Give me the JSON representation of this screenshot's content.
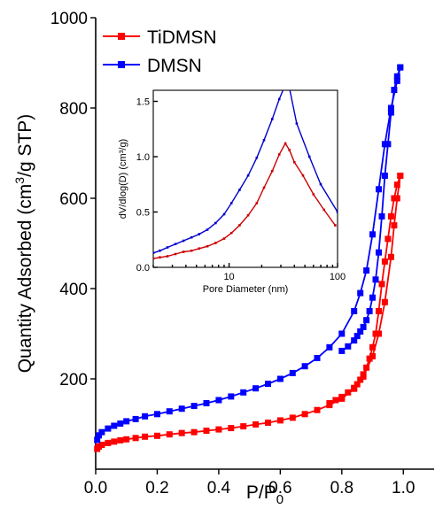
{
  "chart_data": [
    {
      "id": "main",
      "type": "line",
      "title": "",
      "xlabel_base": "P/P",
      "xlabel_sub": "0",
      "ylabel_pre": "Quantity Adsorbed (cm",
      "ylabel_sup": "3",
      "ylabel_post": "/g STP)",
      "xlim": [
        0.0,
        1.1
      ],
      "ylim": [
        0,
        1000
      ],
      "xticks": [
        0.0,
        0.2,
        0.4,
        0.6,
        0.8,
        1.0
      ],
      "xtick_labels": [
        "0.0",
        "0.2",
        "0.4",
        "0.6",
        "0.8",
        "1.0"
      ],
      "yticks": [
        200,
        400,
        600,
        800,
        1000
      ],
      "ytick_labels": [
        "200",
        "400",
        "600",
        "800",
        "1000"
      ],
      "legend": {
        "position": "top-left"
      },
      "series": [
        {
          "name": "TiDMSN",
          "color": "#ff0000",
          "marker": "square",
          "adsorption": {
            "x": [
              0.005,
              0.01,
              0.02,
              0.04,
              0.06,
              0.08,
              0.1,
              0.13,
              0.16,
              0.2,
              0.24,
              0.28,
              0.32,
              0.36,
              0.4,
              0.44,
              0.48,
              0.52,
              0.56,
              0.6,
              0.64,
              0.68,
              0.72,
              0.76,
              0.8,
              0.84,
              0.87,
              0.9,
              0.92,
              0.94,
              0.96,
              0.97,
              0.98,
              0.99
            ],
            "y": [
              45,
              50,
              54,
              58,
              61,
              64,
              66,
              69,
              72,
              74,
              77,
              80,
              82,
              85,
              88,
              91,
              95,
              99,
              103,
              108,
              114,
              122,
              131,
              142,
              156,
              178,
              205,
              250,
              300,
              370,
              470,
              540,
              600,
              650
            ]
          },
          "desorption": {
            "x": [
              0.99,
              0.98,
              0.97,
              0.96,
              0.95,
              0.94,
              0.93,
              0.92,
              0.91,
              0.9,
              0.89,
              0.88,
              0.87,
              0.86,
              0.85,
              0.84,
              0.82,
              0.8,
              0.78,
              0.76
            ],
            "y": [
              650,
              630,
              600,
              560,
              510,
              460,
              410,
              350,
              300,
              270,
              245,
              225,
              210,
              198,
              188,
              180,
              170,
              160,
              153,
              146
            ]
          }
        },
        {
          "name": "DMSN",
          "color": "#0000ff",
          "marker": "square",
          "adsorption": {
            "x": [
              0.005,
              0.01,
              0.02,
              0.04,
              0.06,
              0.08,
              0.1,
              0.13,
              0.16,
              0.2,
              0.24,
              0.28,
              0.32,
              0.36,
              0.4,
              0.44,
              0.48,
              0.52,
              0.56,
              0.6,
              0.64,
              0.68,
              0.72,
              0.76,
              0.8,
              0.84,
              0.86,
              0.88,
              0.9,
              0.92,
              0.94,
              0.96,
              0.98,
              0.99
            ],
            "y": [
              65,
              75,
              82,
              90,
              96,
              101,
              106,
              111,
              117,
              122,
              128,
              134,
              140,
              146,
              153,
              161,
              170,
              179,
              189,
              200,
              213,
              228,
              246,
              270,
              300,
              350,
              390,
              440,
              520,
              620,
              720,
              800,
              860,
              890
            ]
          },
          "desorption": {
            "x": [
              0.99,
              0.98,
              0.97,
              0.96,
              0.95,
              0.94,
              0.93,
              0.92,
              0.91,
              0.9,
              0.89,
              0.88,
              0.87,
              0.86,
              0.85,
              0.84,
              0.82,
              0.8
            ],
            "y": [
              890,
              870,
              840,
              790,
              720,
              650,
              560,
              480,
              420,
              380,
              350,
              330,
              315,
              305,
              295,
              285,
              272,
              262
            ]
          }
        }
      ]
    },
    {
      "id": "inset",
      "type": "line",
      "title": "",
      "xlabel": "Pore Diameter (nm)",
      "ylabel": "dV/dlog(D) (cm³/g)",
      "xscale": "log",
      "xlim": [
        2,
        100
      ],
      "ylim": [
        0.0,
        1.6
      ],
      "xticks": [
        10,
        100
      ],
      "xtick_labels": [
        "10",
        "100"
      ],
      "yticks": [
        0.0,
        0.5,
        1.0,
        1.5
      ],
      "ytick_labels": [
        "0.0",
        "0.5",
        "1.0",
        "1.5"
      ],
      "series": [
        {
          "name": "TiDMSN",
          "color": "#cc0000",
          "x": [
            2.0,
            2.3,
            2.7,
            3.2,
            3.8,
            4.5,
            5.3,
            6.3,
            7.5,
            9.0,
            10.5,
            12.5,
            15,
            18,
            21,
            25,
            29,
            33,
            36,
            40,
            48,
            60,
            75,
            95
          ],
          "y": [
            0.08,
            0.09,
            0.1,
            0.12,
            0.14,
            0.15,
            0.17,
            0.19,
            0.22,
            0.26,
            0.31,
            0.38,
            0.47,
            0.58,
            0.72,
            0.87,
            1.02,
            1.12,
            1.06,
            0.95,
            0.83,
            0.66,
            0.52,
            0.38
          ]
        },
        {
          "name": "DMSN",
          "color": "#0000cc",
          "x": [
            2.0,
            2.3,
            2.7,
            3.2,
            3.8,
            4.5,
            5.3,
            6.3,
            7.5,
            9.0,
            10.5,
            12.5,
            15,
            18,
            21,
            25,
            29,
            32,
            36,
            42,
            55,
            70,
            100
          ],
          "y": [
            0.13,
            0.15,
            0.18,
            0.21,
            0.24,
            0.27,
            0.3,
            0.34,
            0.4,
            0.48,
            0.58,
            0.7,
            0.83,
            0.99,
            1.15,
            1.34,
            1.52,
            1.62,
            1.62,
            1.3,
            1.0,
            0.75,
            0.5
          ]
        }
      ]
    }
  ]
}
